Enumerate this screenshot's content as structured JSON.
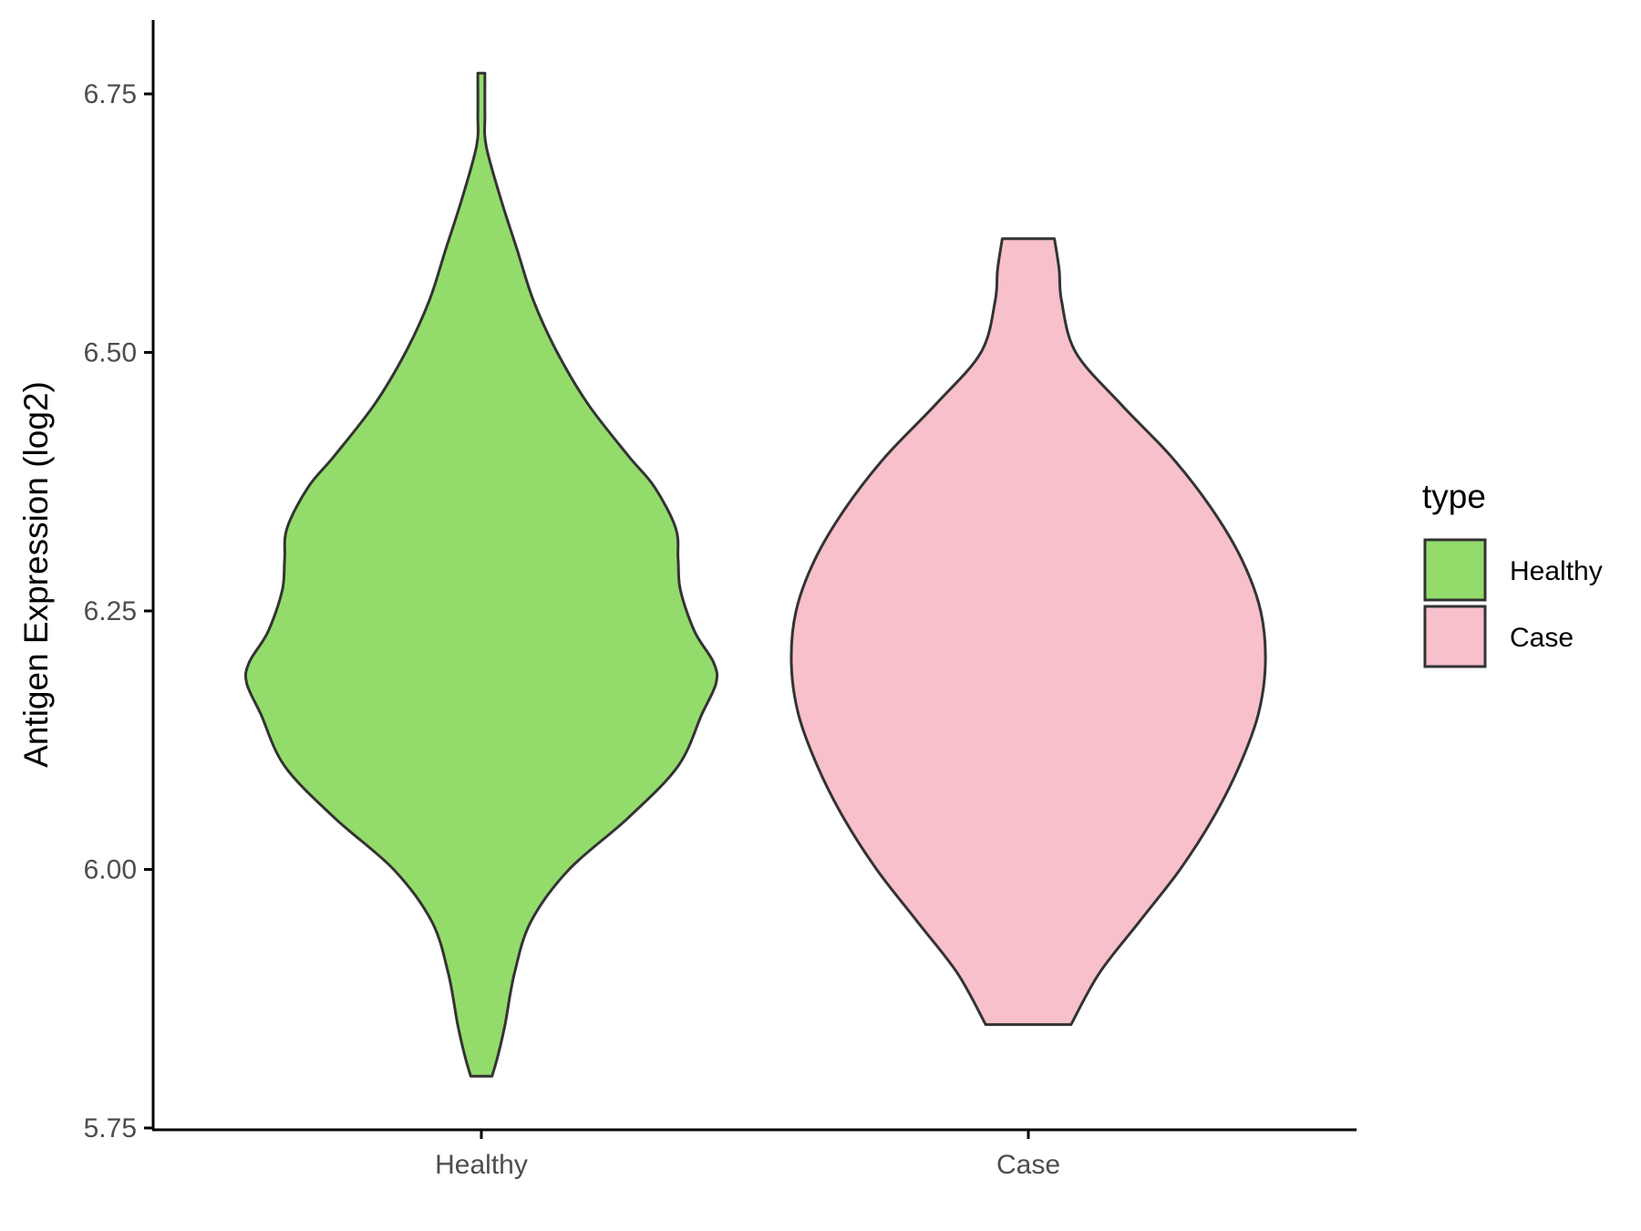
{
  "chart_data": {
    "type": "violin",
    "title": "",
    "xlabel": "",
    "ylabel": "Antigen Expression (log2)",
    "categories": [
      "Healthy",
      "Case"
    ],
    "ylim": [
      5.75,
      6.8
    ],
    "yticks": [
      "5.75",
      "6.00",
      "6.25",
      "6.50",
      "6.75"
    ],
    "grid": false,
    "legend": {
      "title": "type",
      "position": "right",
      "entries": [
        {
          "label": "Healthy",
          "color": "#93DC6B"
        },
        {
          "label": "Case",
          "color": "#F7C0CB"
        }
      ]
    },
    "series": [
      {
        "name": "Healthy",
        "color": "#93DC6B",
        "min": 5.8,
        "max": 6.77,
        "density_profile": [
          [
            5.8,
            0.045
          ],
          [
            5.82,
            0.07
          ],
          [
            5.85,
            0.1
          ],
          [
            5.9,
            0.14
          ],
          [
            5.95,
            0.21
          ],
          [
            6.0,
            0.37
          ],
          [
            6.05,
            0.62
          ],
          [
            6.1,
            0.83
          ],
          [
            6.15,
            0.93
          ],
          [
            6.18,
            0.99
          ],
          [
            6.2,
            0.98
          ],
          [
            6.23,
            0.9
          ],
          [
            6.27,
            0.84
          ],
          [
            6.3,
            0.83
          ],
          [
            6.33,
            0.82
          ],
          [
            6.37,
            0.73
          ],
          [
            6.4,
            0.62
          ],
          [
            6.45,
            0.45
          ],
          [
            6.5,
            0.32
          ],
          [
            6.55,
            0.22
          ],
          [
            6.6,
            0.15
          ],
          [
            6.65,
            0.08
          ],
          [
            6.7,
            0.02
          ],
          [
            6.73,
            0.015
          ],
          [
            6.77,
            0.015
          ]
        ]
      },
      {
        "name": "Case",
        "color": "#F7C0CB",
        "min": 5.85,
        "max": 6.61,
        "density_profile": [
          [
            5.85,
            0.18
          ],
          [
            5.9,
            0.3
          ],
          [
            5.95,
            0.47
          ],
          [
            6.0,
            0.64
          ],
          [
            6.05,
            0.78
          ],
          [
            6.1,
            0.89
          ],
          [
            6.15,
            0.97
          ],
          [
            6.2,
            1.0
          ],
          [
            6.25,
            0.98
          ],
          [
            6.3,
            0.9
          ],
          [
            6.35,
            0.77
          ],
          [
            6.4,
            0.6
          ],
          [
            6.45,
            0.39
          ],
          [
            6.5,
            0.2
          ],
          [
            6.55,
            0.14
          ],
          [
            6.58,
            0.13
          ],
          [
            6.61,
            0.11
          ]
        ]
      }
    ]
  }
}
